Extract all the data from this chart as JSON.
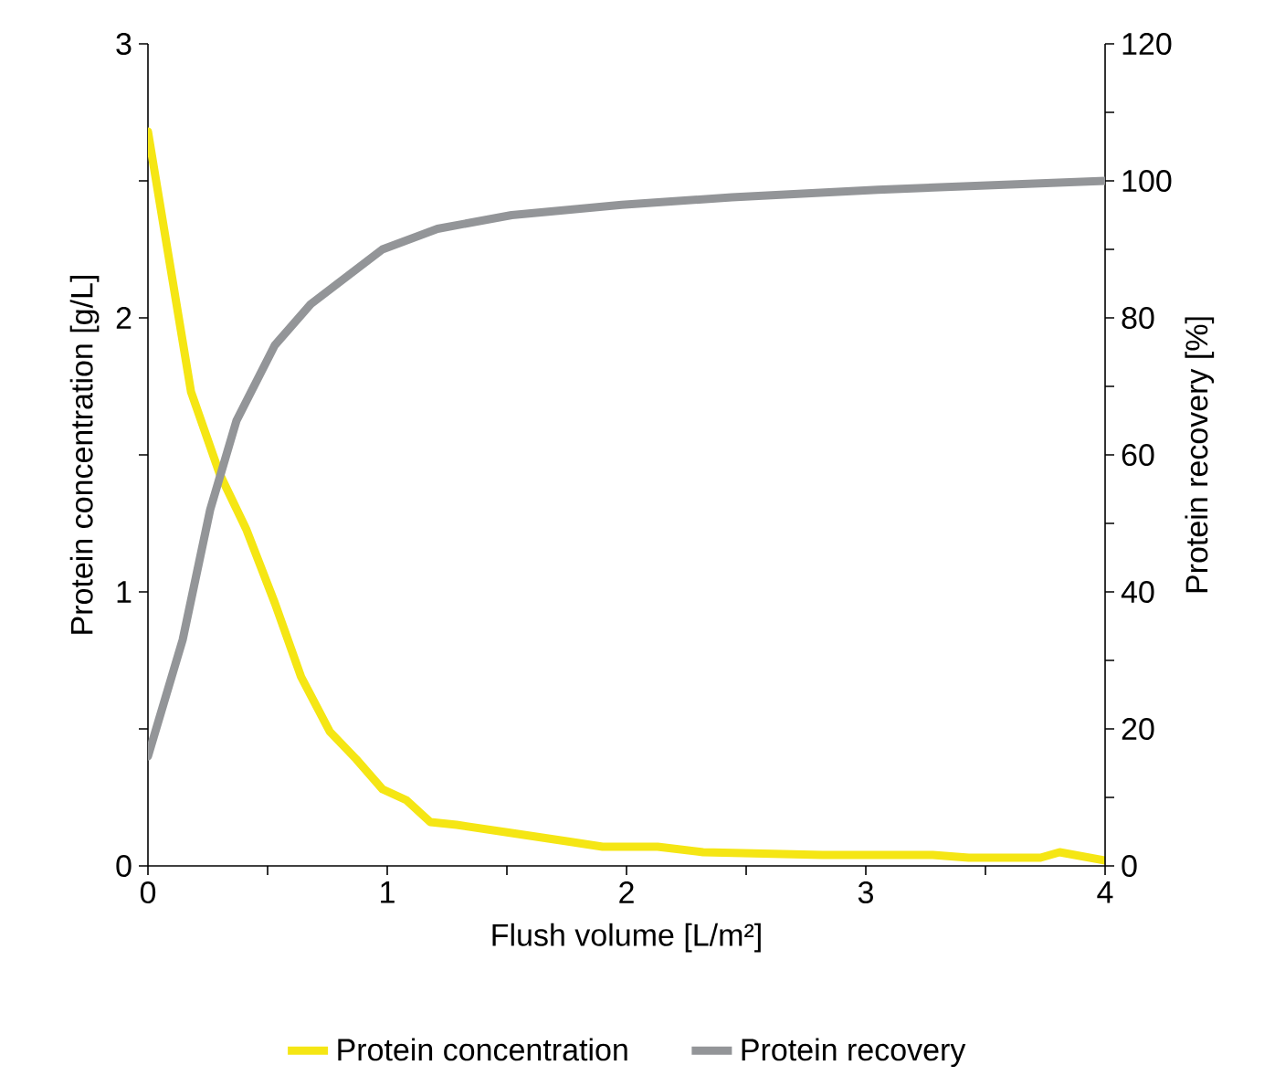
{
  "chart_data": {
    "type": "line",
    "xlabel": "Flush volume [L/m²]",
    "ylabel": "Protein concentration [g/L]",
    "y2label": "Protein recovery [%]",
    "xlim": [
      0,
      4
    ],
    "xticks": [
      0,
      {
        "value": 0.5,
        "label": null
      },
      1,
      {
        "value": 1.5,
        "label": null
      },
      2,
      {
        "value": 2.5,
        "label": null
      },
      3,
      {
        "value": 3.5,
        "label": null
      },
      4
    ],
    "ylim": [
      0,
      3
    ],
    "yticks": [
      0,
      {
        "value": 0.5,
        "label": null
      },
      1,
      {
        "value": 1.5,
        "label": null
      },
      2,
      {
        "value": 2.5,
        "label": null
      },
      3
    ],
    "y2lim": [
      0,
      120
    ],
    "y2ticks": [
      0,
      {
        "value": 10,
        "label": null
      },
      20,
      {
        "value": 30,
        "label": null
      },
      40,
      {
        "value": 50,
        "label": null
      },
      60,
      {
        "value": 70,
        "label": null
      },
      80,
      {
        "value": 90,
        "label": null
      },
      100,
      {
        "value": 110,
        "label": null
      },
      120
    ],
    "grid": false,
    "legend": "bottom",
    "marker": "none",
    "line_style": "solid",
    "series": [
      {
        "name": "Protein concentration",
        "color": "#f5e614",
        "x": [
          0,
          0.18,
          0.3,
          0.41,
          0.53,
          0.64,
          0.76,
          0.87,
          0.98,
          1.08,
          1.18,
          1.29,
          1.52,
          1.75,
          1.9,
          2.13,
          2.32,
          2.82,
          3.28,
          3.43,
          3.73,
          3.81,
          4
        ],
        "values": [
          2.68,
          1.73,
          1.43,
          1.23,
          0.96,
          0.69,
          0.49,
          0.39,
          0.28,
          0.24,
          0.16,
          0.15,
          0.12,
          0.09,
          0.07,
          0.07,
          0.05,
          0.04,
          0.04,
          0.03,
          0.03,
          0.05,
          0.02
        ]
      },
      {
        "name": "Protein recovery",
        "color": "#939598",
        "axis": "y2",
        "x": [
          0,
          0.145,
          0.26,
          0.37,
          0.53,
          0.68,
          0.83,
          0.98,
          1.21,
          1.52,
          1.98,
          2.44,
          3.05,
          4
        ],
        "values": [
          16,
          33,
          52,
          65,
          76,
          82,
          86,
          90,
          93,
          95,
          96.5,
          97.6,
          98.7,
          100
        ]
      }
    ]
  }
}
